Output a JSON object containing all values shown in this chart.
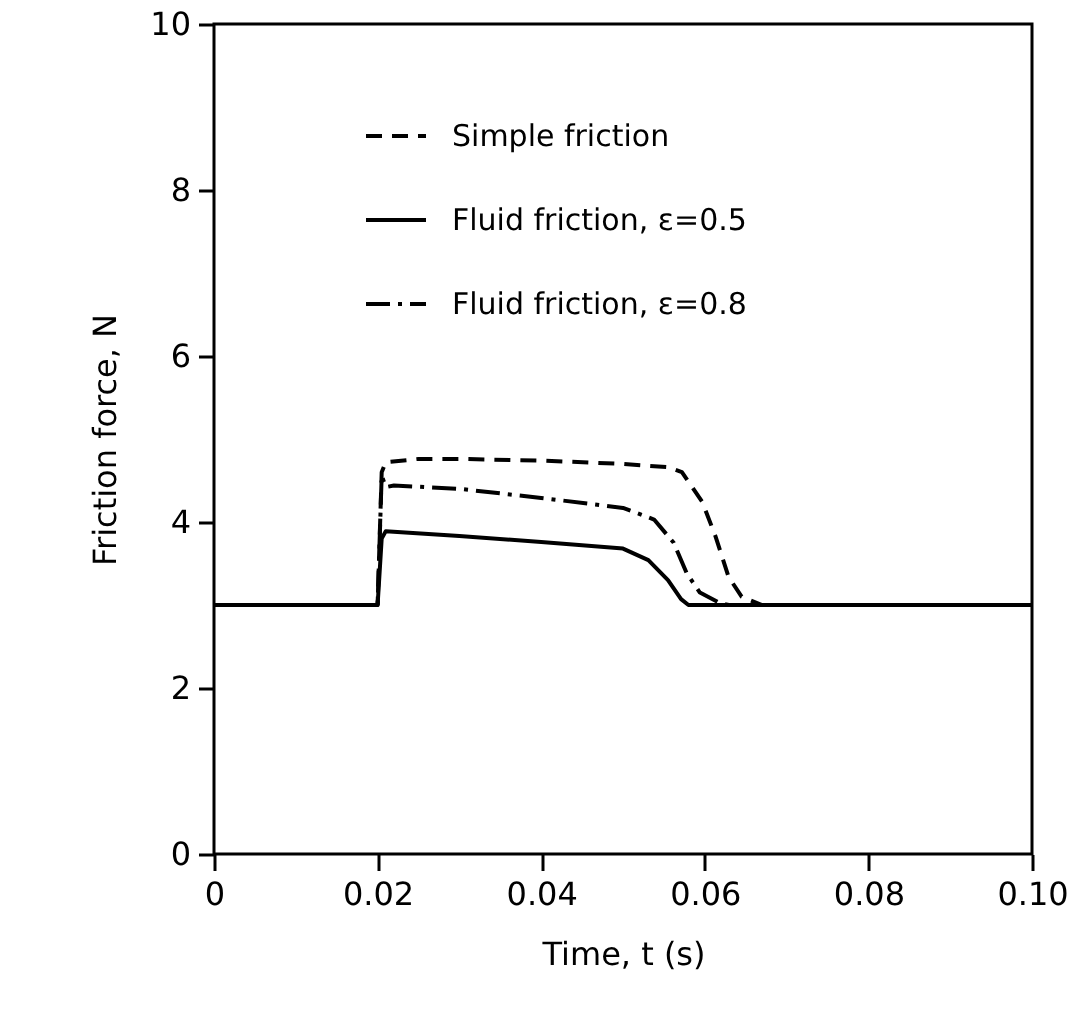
{
  "chart_data": {
    "type": "line",
    "xlabel": "Time,  t (s)",
    "ylabel": "Friction force, N",
    "xlim": [
      0,
      0.1
    ],
    "ylim": [
      0,
      10
    ],
    "xticks": [
      0,
      0.02,
      0.04,
      0.06,
      0.08,
      {
        "value": 0.1,
        "label": "0.10"
      }
    ],
    "yticks": [
      0,
      2,
      4,
      6,
      8,
      10
    ],
    "grid": false,
    "legend": "top",
    "marker": "none",
    "series": [
      {
        "name": "Simple friction",
        "color": "#000000",
        "line_style": "dashed",
        "x": [
          0,
          0.02,
          0.0205,
          0.021,
          0.025,
          0.03,
          0.04,
          0.05,
          0.0555,
          0.0572,
          0.0597,
          0.0613,
          0.0629,
          0.0645,
          0.067,
          0.1
        ],
        "values": [
          3,
          3,
          4.6,
          4.72,
          4.76,
          4.76,
          4.74,
          4.7,
          4.66,
          4.6,
          4.24,
          3.83,
          3.34,
          3.1,
          3,
          3
        ]
      },
      {
        "name": "Fluid friction, ε=0.5",
        "color": "#000000",
        "line_style": "solid",
        "x": [
          0,
          0.02,
          0.0205,
          0.021,
          0.03,
          0.04,
          0.05,
          0.0531,
          0.0555,
          0.0571,
          0.058,
          0.1
        ],
        "values": [
          3,
          3,
          3.8,
          3.89,
          3.83,
          3.76,
          3.68,
          3.54,
          3.3,
          3.07,
          3,
          3
        ]
      },
      {
        "name": "Fluid friction, ε=0.8",
        "color": "#000000",
        "line_style": "dashdot",
        "x": [
          0,
          0.02,
          0.0205,
          0.021,
          0.022,
          0.03,
          0.04,
          0.05,
          0.0538,
          0.0562,
          0.0578,
          0.0594,
          0.0619,
          0.063,
          0.1
        ],
        "values": [
          3,
          3,
          4.56,
          4.42,
          4.44,
          4.4,
          4.29,
          4.17,
          4.03,
          3.75,
          3.38,
          3.15,
          3.02,
          3,
          3
        ]
      }
    ]
  }
}
